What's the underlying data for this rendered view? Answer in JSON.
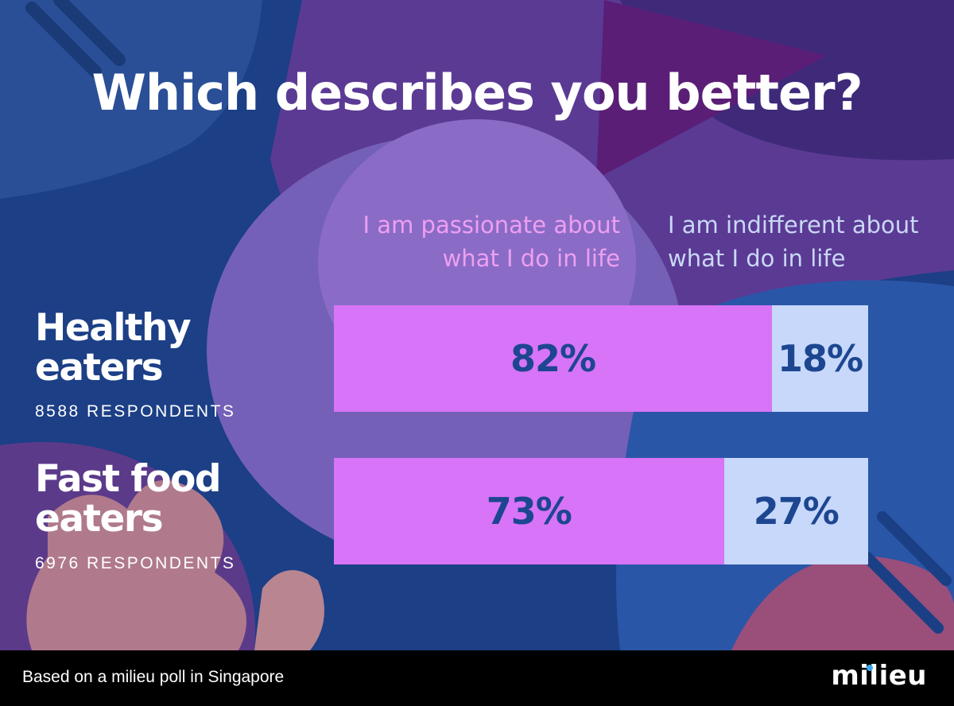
{
  "colors": {
    "passionate": "#d774f7",
    "indifferent": "#c7d8fb",
    "value_text": "#1d4690",
    "legend_passionate": "#ee9ff2",
    "legend_indifferent": "#c9d8f6"
  },
  "chart_data": {
    "type": "bar",
    "orientation": "horizontal",
    "stacked": true,
    "normalized_percent": true,
    "title": "Which describes you better?",
    "categories": [
      {
        "label_line1": "Healthy",
        "label_line2": "eaters",
        "respondents": "8588 RESPONDENTS"
      },
      {
        "label_line1": "Fast food",
        "label_line2": "eaters",
        "respondents": "6976 RESPONDENTS"
      }
    ],
    "series": [
      {
        "name_line1": "I am passionate about",
        "name_line2": "what I do in life",
        "values": [
          82,
          73
        ],
        "labels": [
          "82%",
          "73%"
        ]
      },
      {
        "name_line1": "I am indifferent about",
        "name_line2": "what I do in life",
        "values": [
          18,
          27
        ],
        "labels": [
          "18%",
          "27%"
        ]
      }
    ]
  },
  "footer": {
    "note": "Based on a milieu poll in Singapore",
    "logo": "milieu"
  }
}
